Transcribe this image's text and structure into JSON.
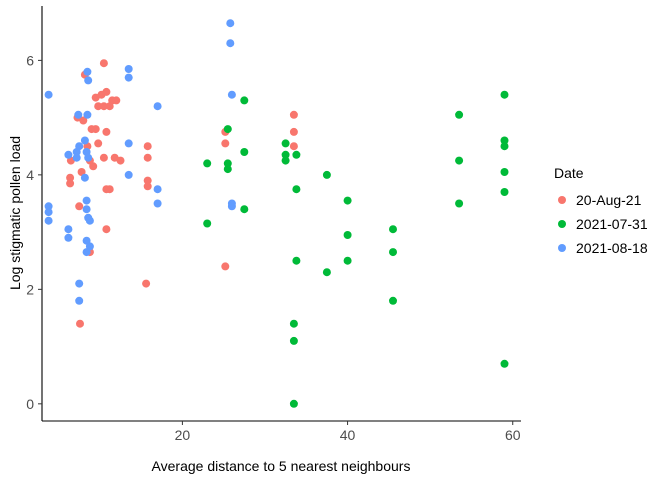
{
  "chart_data": {
    "type": "scatter",
    "xlabel": "Average distance to 5 nearest neighbours",
    "ylabel": "Log stigmatic pollen load",
    "xlim": [
      3,
      61
    ],
    "ylim": [
      -0.3,
      6.95
    ],
    "x_ticks": [
      20,
      40,
      60
    ],
    "y_ticks": [
      0,
      2,
      4,
      6
    ],
    "grid": false,
    "legend": {
      "title": "Date",
      "position": "right"
    },
    "series": [
      {
        "name": "20-Aug-21",
        "color": "#F8766D",
        "points": [
          [
            10.5,
            5.95
          ],
          [
            8.2,
            5.75
          ],
          [
            9.5,
            5.35
          ],
          [
            10.2,
            5.4
          ],
          [
            10.8,
            5.45
          ],
          [
            11.5,
            5.3
          ],
          [
            12.0,
            5.3
          ],
          [
            9.8,
            5.2
          ],
          [
            10.5,
            5.2
          ],
          [
            11.2,
            5.2
          ],
          [
            8.0,
            4.95
          ],
          [
            7.3,
            5.0
          ],
          [
            9.0,
            4.8
          ],
          [
            9.5,
            4.8
          ],
          [
            10.8,
            4.75
          ],
          [
            8.5,
            4.5
          ],
          [
            9.8,
            4.55
          ],
          [
            8.8,
            4.25
          ],
          [
            10.5,
            4.3
          ],
          [
            11.8,
            4.3
          ],
          [
            12.5,
            4.25
          ],
          [
            9.2,
            4.15
          ],
          [
            7.8,
            4.05
          ],
          [
            6.5,
            4.25
          ],
          [
            6.4,
            3.95
          ],
          [
            6.4,
            3.85
          ],
          [
            10.8,
            3.75
          ],
          [
            11.2,
            3.75
          ],
          [
            7.5,
            3.45
          ],
          [
            8.8,
            2.65
          ],
          [
            10.8,
            3.05
          ],
          [
            7.6,
            1.4
          ],
          [
            15.8,
            4.5
          ],
          [
            15.8,
            4.3
          ],
          [
            15.8,
            3.9
          ],
          [
            15.8,
            3.8
          ],
          [
            15.6,
            2.1
          ],
          [
            25.2,
            4.75
          ],
          [
            25.2,
            4.55
          ],
          [
            25.2,
            2.4
          ],
          [
            33.5,
            5.05
          ],
          [
            33.5,
            4.75
          ],
          [
            33.5,
            4.5
          ]
        ]
      },
      {
        "name": "2021-07-31",
        "color": "#00BA38",
        "points": [
          [
            27.5,
            5.3
          ],
          [
            25.5,
            4.8
          ],
          [
            25.5,
            4.2
          ],
          [
            25.5,
            4.1
          ],
          [
            27.5,
            4.4
          ],
          [
            23.0,
            4.2
          ],
          [
            23.0,
            3.15
          ],
          [
            27.5,
            3.4
          ],
          [
            32.5,
            4.55
          ],
          [
            32.5,
            4.35
          ],
          [
            32.5,
            4.25
          ],
          [
            33.8,
            4.35
          ],
          [
            33.8,
            3.75
          ],
          [
            33.8,
            2.5
          ],
          [
            33.5,
            1.4
          ],
          [
            33.5,
            1.1
          ],
          [
            33.5,
            0.0
          ],
          [
            37.5,
            4.0
          ],
          [
            37.5,
            2.3
          ],
          [
            40.0,
            3.55
          ],
          [
            40.0,
            2.95
          ],
          [
            40.0,
            2.5
          ],
          [
            45.5,
            3.05
          ],
          [
            45.5,
            2.65
          ],
          [
            45.5,
            1.8
          ],
          [
            53.5,
            5.05
          ],
          [
            53.5,
            4.25
          ],
          [
            53.5,
            3.5
          ],
          [
            59.0,
            5.4
          ],
          [
            59.0,
            4.6
          ],
          [
            59.0,
            4.5
          ],
          [
            59.0,
            4.05
          ],
          [
            59.0,
            3.7
          ],
          [
            59.0,
            0.7
          ]
        ]
      },
      {
        "name": "2021-08-18",
        "color": "#619CFF",
        "points": [
          [
            3.8,
            5.4
          ],
          [
            3.8,
            3.45
          ],
          [
            3.8,
            3.35
          ],
          [
            3.8,
            3.2
          ],
          [
            6.2,
            4.35
          ],
          [
            6.2,
            3.05
          ],
          [
            6.2,
            2.9
          ],
          [
            7.2,
            4.4
          ],
          [
            7.2,
            4.3
          ],
          [
            7.5,
            4.5
          ],
          [
            7.5,
            2.1
          ],
          [
            7.5,
            1.8
          ],
          [
            8.2,
            4.6
          ],
          [
            8.4,
            4.4
          ],
          [
            8.6,
            4.3
          ],
          [
            8.2,
            3.95
          ],
          [
            8.4,
            3.55
          ],
          [
            8.4,
            3.4
          ],
          [
            8.6,
            3.25
          ],
          [
            8.8,
            3.2
          ],
          [
            8.4,
            2.85
          ],
          [
            8.8,
            2.75
          ],
          [
            8.4,
            2.65
          ],
          [
            8.5,
            5.8
          ],
          [
            8.6,
            5.65
          ],
          [
            7.4,
            5.05
          ],
          [
            13.5,
            5.85
          ],
          [
            13.5,
            5.7
          ],
          [
            13.5,
            4.55
          ],
          [
            13.5,
            4.0
          ],
          [
            17.0,
            5.2
          ],
          [
            17.0,
            3.75
          ],
          [
            17.0,
            3.5
          ],
          [
            25.8,
            6.65
          ],
          [
            25.8,
            6.3
          ],
          [
            26.0,
            5.4
          ],
          [
            26.0,
            3.5
          ],
          [
            26.0,
            3.45
          ],
          [
            8.5,
            5.05
          ]
        ]
      }
    ]
  }
}
